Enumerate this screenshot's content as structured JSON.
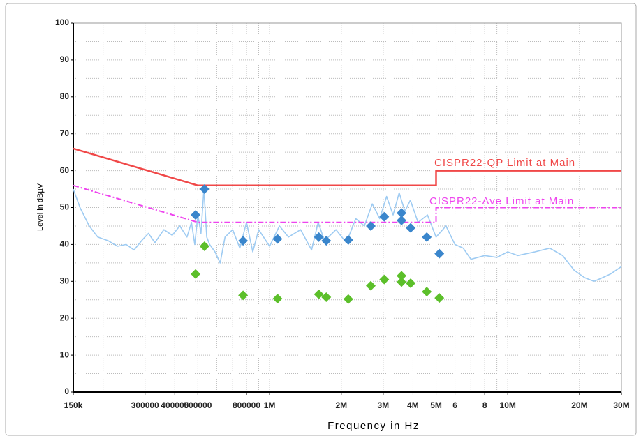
{
  "chart_data": {
    "type": "line",
    "xscale": "log",
    "xlabel": "Frequency in Hz",
    "ylabel": "Level in dBµV",
    "xlim": [
      150000,
      30000000
    ],
    "ylim": [
      0,
      100
    ],
    "xticks": [
      {
        "value": 150000,
        "label": "150k"
      },
      300000,
      400000,
      500000,
      800000,
      {
        "value": 1000000,
        "label": "1M"
      },
      {
        "value": 2000000,
        "label": "2M"
      },
      {
        "value": 3000000,
        "label": "3M"
      },
      {
        "value": 4000000,
        "label": "4M"
      },
      {
        "value": 5000000,
        "label": "5M"
      },
      {
        "value": 6000000,
        "label": "6"
      },
      {
        "value": 8000000,
        "label": "8"
      },
      {
        "value": 10000000,
        "label": "10M"
      },
      {
        "value": 20000000,
        "label": "20M"
      },
      {
        "value": 30000000,
        "label": "30M"
      }
    ],
    "xgrid": [
      200000,
      600000,
      700000,
      900000,
      7000000,
      9000000
    ],
    "yticks": [
      0,
      10,
      20,
      30,
      40,
      50,
      60,
      70,
      80,
      90,
      100
    ],
    "yminor": [
      5,
      15,
      25,
      35,
      45,
      55,
      65,
      75,
      85,
      95
    ],
    "grid": true,
    "series": [
      {
        "kind": "line",
        "color": "#9ecbf2",
        "width": 1.6,
        "x": [
          150000,
          160000,
          175000,
          190000,
          210000,
          230000,
          250000,
          270000,
          290000,
          310000,
          330000,
          360000,
          390000,
          420000,
          450000,
          470000,
          485000,
          500000,
          515000,
          530000,
          545000,
          560000,
          590000,
          620000,
          650000,
          700000,
          750000,
          800000,
          850000,
          900000,
          1000000,
          1100000,
          1200000,
          1350000,
          1500000,
          1600000,
          1700000,
          1900000,
          2100000,
          2300000,
          2500000,
          2700000,
          2900000,
          3100000,
          3300000,
          3500000,
          3700000,
          3900000,
          4200000,
          4600000,
          5000000,
          5500000,
          6000000,
          6500000,
          7000000,
          8000000,
          9000000,
          10000000,
          11000000,
          13000000,
          15000000,
          17000000,
          19000000,
          21000000,
          23000000,
          25000000,
          27000000,
          30000000
        ],
        "values": [
          55,
          50,
          45,
          42,
          41,
          39.5,
          40,
          38.5,
          41,
          43,
          40.5,
          44,
          42.5,
          45,
          42,
          46,
          40,
          48,
          43,
          55,
          42,
          40,
          38,
          35,
          42,
          44,
          39,
          46,
          38,
          44,
          39.5,
          45,
          42,
          44,
          38.5,
          46,
          41,
          44,
          40.5,
          47,
          45,
          51,
          47,
          53,
          48,
          54,
          49,
          52,
          46,
          48,
          42,
          45,
          40,
          39,
          36,
          37,
          36.5,
          38,
          37,
          38,
          39,
          37,
          33,
          31,
          30,
          31,
          32,
          34
        ]
      },
      {
        "kind": "line",
        "color": "#f04848",
        "width": 2.5,
        "x": [
          150000,
          500000,
          5000000,
          5000000,
          30000000
        ],
        "values": [
          66,
          56,
          56,
          60,
          60
        ]
      },
      {
        "kind": "line",
        "color": "#ee44ee",
        "width": 2,
        "dash": "8 3 2 3",
        "x": [
          150000,
          500000,
          5000000,
          5000000,
          30000000
        ],
        "values": [
          56,
          46,
          46,
          50,
          50
        ]
      },
      {
        "kind": "scatter",
        "color": "#3a86cc",
        "x": [
          489000,
          533000,
          774000,
          1080000,
          1610000,
          1730000,
          2140000,
          2660000,
          3030000,
          3580000,
          3580000,
          3910000,
          4570000,
          5160000
        ],
        "values": [
          48,
          55,
          41,
          41.5,
          42,
          41,
          41.2,
          45,
          47.5,
          48.5,
          46.5,
          44.5,
          42,
          37.5
        ]
      },
      {
        "kind": "scatter",
        "color": "#5cbf2a",
        "x": [
          489000,
          533000,
          774000,
          1080000,
          1610000,
          1730000,
          2140000,
          2660000,
          3030000,
          3580000,
          3580000,
          3910000,
          4570000,
          5160000
        ],
        "values": [
          32,
          39.5,
          26.2,
          25.3,
          26.5,
          25.7,
          25.2,
          28.8,
          30.5,
          31.5,
          29.8,
          29.5,
          27.2,
          25.5
        ]
      }
    ],
    "annotations": [
      {
        "text": "CISPR22-QP Limit at Main",
        "color": "#f04848"
      },
      {
        "text": "CISPR22-Ave Limit at Main",
        "color": "#ee44ee"
      }
    ]
  }
}
